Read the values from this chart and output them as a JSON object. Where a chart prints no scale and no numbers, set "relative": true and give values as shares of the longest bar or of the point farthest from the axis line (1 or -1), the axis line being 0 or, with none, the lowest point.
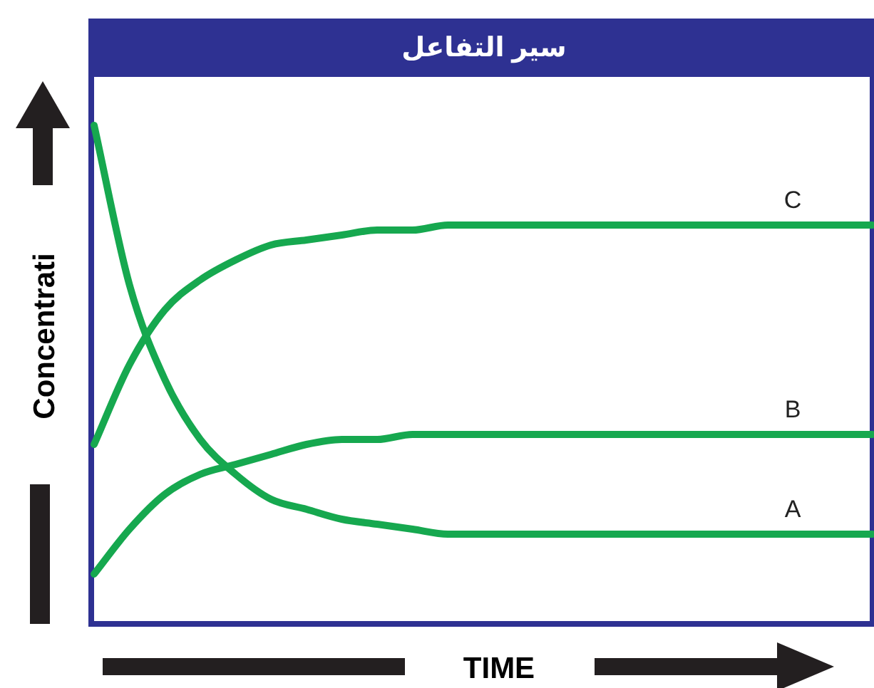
{
  "chart_data": {
    "type": "line",
    "title": "سير التفاعل",
    "xlabel": "TIME",
    "ylabel": "Concentrati",
    "relative": true,
    "categories": [
      null,
      null,
      null,
      null,
      null,
      null,
      null,
      null,
      null,
      null,
      null,
      null,
      null,
      null,
      null,
      null,
      null,
      null,
      null,
      null,
      null,
      null,
      null
    ],
    "series": [
      {
        "name": "A",
        "color": "#16a84f",
        "values": [
          1,
          0.68,
          0.49,
          0.37,
          0.3,
          0.25,
          0.23,
          0.21,
          0.2,
          0.19,
          0.18,
          0.18,
          0.18,
          0.18,
          0.18,
          0.18,
          0.18,
          0.18,
          0.18,
          0.18,
          0.18,
          0.18,
          0.18
        ]
      },
      {
        "name": "B",
        "color": "#16a84f",
        "values": [
          0.1,
          0.19,
          0.26,
          0.3,
          0.32,
          0.34,
          0.36,
          0.37,
          0.37,
          0.38,
          0.38,
          0.38,
          0.38,
          0.38,
          0.38,
          0.38,
          0.38,
          0.38,
          0.38,
          0.38,
          0.38,
          0.38,
          0.38
        ]
      },
      {
        "name": "C",
        "color": "#16a84f",
        "values": [
          0.36,
          0.52,
          0.63,
          0.69,
          0.73,
          0.76,
          0.77,
          0.78,
          0.79,
          0.79,
          0.8,
          0.8,
          0.8,
          0.8,
          0.8,
          0.8,
          0.8,
          0.8,
          0.8,
          0.8,
          0.8,
          0.8,
          0.8
        ]
      }
    ],
    "marker": "none",
    "line_style": "solid"
  }
}
